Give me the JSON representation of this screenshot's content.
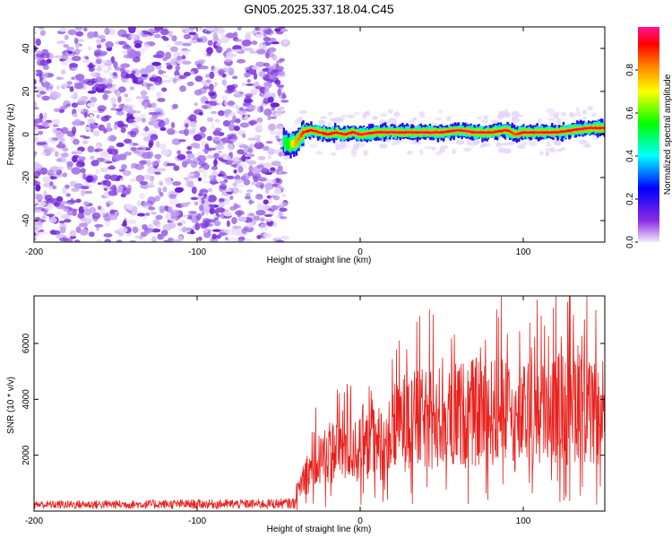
{
  "chart_data": [
    {
      "type": "heatmap",
      "title": "GN05.2025.337.18.04.C45",
      "xlabel": "Height of straight line (km)",
      "ylabel": "Frequency (Hz)",
      "xlim": [
        -200,
        150
      ],
      "ylim": [
        -50,
        50
      ],
      "xticks": [
        {
          "value": -200,
          "label": "-200"
        },
        {
          "value": -100,
          "label": "-100"
        },
        {
          "value": 0,
          "label": "0"
        },
        {
          "value": 100,
          "label": "100"
        }
      ],
      "yticks": [
        {
          "value": -40,
          "label": "-40"
        },
        {
          "value": -20,
          "label": "-20"
        },
        {
          "value": 0,
          "label": "0"
        },
        {
          "value": 20,
          "label": "20"
        },
        {
          "value": 40,
          "label": "40"
        }
      ],
      "noise_region_x": [
        -200,
        -48
      ],
      "signal_ridge": {
        "x": [
          -47,
          -44,
          -40,
          -35,
          -30,
          -25,
          -20,
          -15,
          -10,
          -5,
          0,
          10,
          20,
          30,
          40,
          50,
          60,
          70,
          80,
          90,
          95,
          100,
          110,
          120,
          130,
          140,
          150
        ],
        "frequency": [
          -3,
          -5,
          -4,
          1,
          2,
          1,
          0,
          1,
          0,
          1,
          0,
          1,
          1,
          1,
          1,
          1,
          2,
          1,
          1,
          2,
          0,
          1,
          1,
          1,
          2,
          3,
          3
        ],
        "amplitude": [
          0.45,
          0.5,
          0.7,
          0.85,
          0.9,
          0.95,
          0.85,
          0.9,
          0.92,
          0.9,
          0.95,
          0.92,
          0.95,
          0.92,
          0.95,
          0.92,
          0.95,
          0.95,
          0.92,
          0.9,
          0.8,
          0.9,
          0.92,
          0.9,
          0.92,
          0.95,
          0.9
        ]
      },
      "colorbar": {
        "label": "Normalized spectral amplitude",
        "range": [
          0,
          1
        ],
        "ticks": [
          {
            "value": 0.0,
            "label": "0.0"
          },
          {
            "value": 0.2,
            "label": "0.2"
          },
          {
            "value": 0.4,
            "label": "0.4"
          },
          {
            "value": 0.6,
            "label": "0.6"
          },
          {
            "value": 0.8,
            "label": "0.8"
          }
        ],
        "colormap": [
          "#f4eafc",
          "#8a2be2",
          "#0000ff",
          "#00ffff",
          "#00ff00",
          "#ffff00",
          "#ff8000",
          "#ff0000",
          "#ff1493"
        ]
      }
    },
    {
      "type": "line",
      "xlabel": "Height of straight line (km)",
      "ylabel": "SNR (10 * v/v)",
      "xlim": [
        -200,
        150
      ],
      "ylim": [
        0,
        7700
      ],
      "xticks": [
        {
          "value": -200,
          "label": "-200"
        },
        {
          "value": -100,
          "label": "-100"
        },
        {
          "value": 0,
          "label": "0"
        },
        {
          "value": 100,
          "label": "100"
        }
      ],
      "yticks": [
        {
          "value": 2000,
          "label": "2000"
        },
        {
          "value": 4000,
          "label": "4000"
        },
        {
          "value": 6000,
          "label": "6000"
        }
      ],
      "series": [
        {
          "name": "SNR",
          "color": "#e8201c",
          "x": [
            -200,
            -150,
            -100,
            -60,
            -40,
            -38,
            -35,
            -30,
            -25,
            -20,
            -15,
            -10,
            -5,
            0,
            5,
            10,
            20,
            25,
            30,
            40,
            50,
            60,
            70,
            80,
            90,
            95,
            100,
            110,
            120,
            130,
            135,
            140,
            145,
            150
          ],
          "envelope": [
            300,
            320,
            340,
            350,
            400,
            900,
            1500,
            1900,
            2300,
            2600,
            2800,
            2900,
            2800,
            2700,
            2900,
            3000,
            3300,
            4000,
            4000,
            4100,
            4200,
            4300,
            4400,
            4400,
            4500,
            3800,
            4200,
            4500,
            4600,
            4600,
            5500,
            4300,
            4200,
            3800
          ]
        }
      ]
    }
  ]
}
